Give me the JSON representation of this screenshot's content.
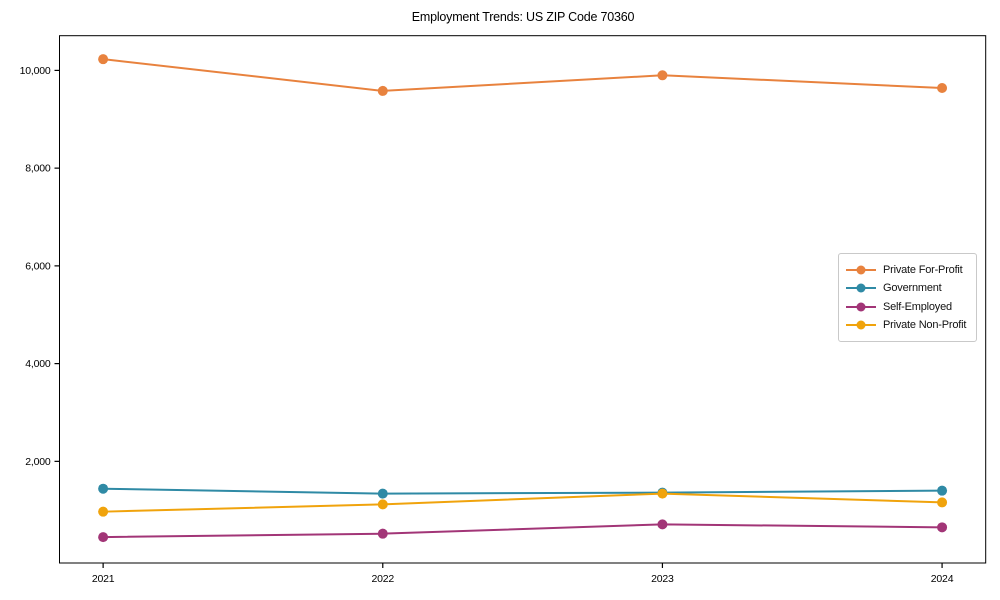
{
  "figure": {
    "background_color": "#ffffff",
    "axis_color": "#000000",
    "text_color": "#000000",
    "legend_border_color": "#c9c9c9"
  },
  "chart_data": {
    "type": "line",
    "title": "Employment Trends: US ZIP Code 70360",
    "xlabel": "",
    "ylabel": "",
    "x": [
      2021,
      2022,
      2023,
      2024
    ],
    "x_tick_labels": [
      "2021",
      "2022",
      "2023",
      "2024"
    ],
    "y_ticks": [
      2000,
      4000,
      6000,
      8000,
      10000
    ],
    "y_tick_labels": [
      "2,000",
      "4,000",
      "6,000",
      "8,000",
      "10,000"
    ],
    "xlim": [
      2020.844,
      2024.156
    ],
    "ylim": [
      -80,
      10710
    ],
    "grid": false,
    "legend_position": "center-right-inside",
    "marker": "circle",
    "series": [
      {
        "name": "Private For-Profit",
        "color": "#e8823e",
        "values": [
          10230,
          9580,
          9900,
          9640
        ]
      },
      {
        "name": "Government",
        "color": "#2f8aa5",
        "values": [
          1440,
          1340,
          1360,
          1400
        ]
      },
      {
        "name": "Self-Employed",
        "color": "#a23577",
        "values": [
          450,
          520,
          710,
          650
        ]
      },
      {
        "name": "Private Non-Profit",
        "color": "#f0a30c",
        "values": [
          970,
          1120,
          1340,
          1160
        ]
      }
    ]
  }
}
